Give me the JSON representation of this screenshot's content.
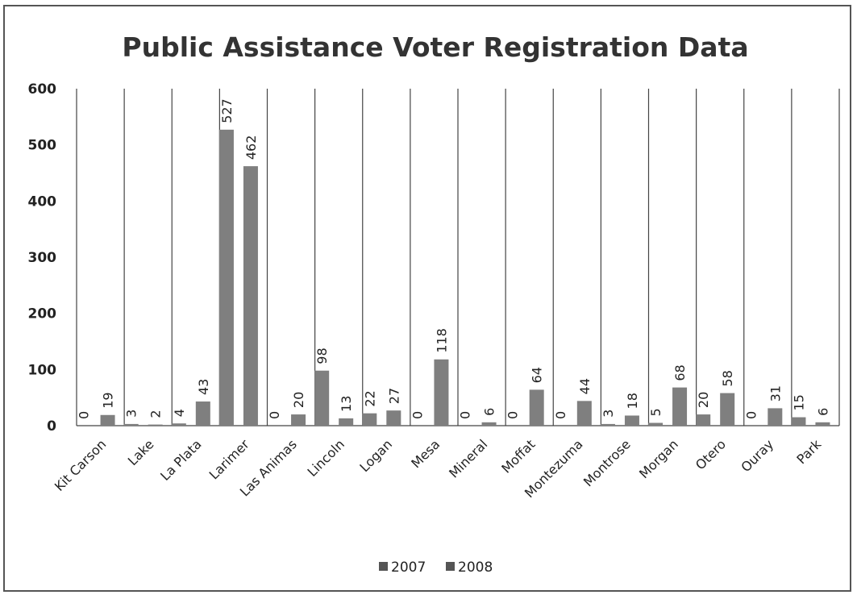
{
  "chart_data": {
    "type": "bar",
    "title": "Public Assistance Voter Registration Data",
    "categories": [
      "Kit Carson",
      "Lake",
      "La Plata",
      "Larimer",
      "Las Animas",
      "Lincoln",
      "Logan",
      "Mesa",
      "Mineral",
      "Moffat",
      "Montezuma",
      "Montrose",
      "Morgan",
      "Otero",
      "Ouray",
      "Park"
    ],
    "series": [
      {
        "name": "2007",
        "values": [
          0,
          3,
          4,
          527,
          0,
          98,
          22,
          0,
          0,
          0,
          0,
          3,
          5,
          20,
          0,
          15
        ]
      },
      {
        "name": "2008",
        "values": [
          19,
          2,
          43,
          462,
          20,
          13,
          27,
          118,
          6,
          64,
          44,
          18,
          68,
          58,
          31,
          6
        ]
      }
    ],
    "y_ticks": [
      "0",
      "100",
      "200",
      "300",
      "400",
      "500",
      "600"
    ],
    "ylim": [
      0,
      600
    ],
    "grid": "vertical category separators",
    "legend": "bottom",
    "bar_color": "#7f7f7f",
    "legend_marker_color": "#555555"
  }
}
